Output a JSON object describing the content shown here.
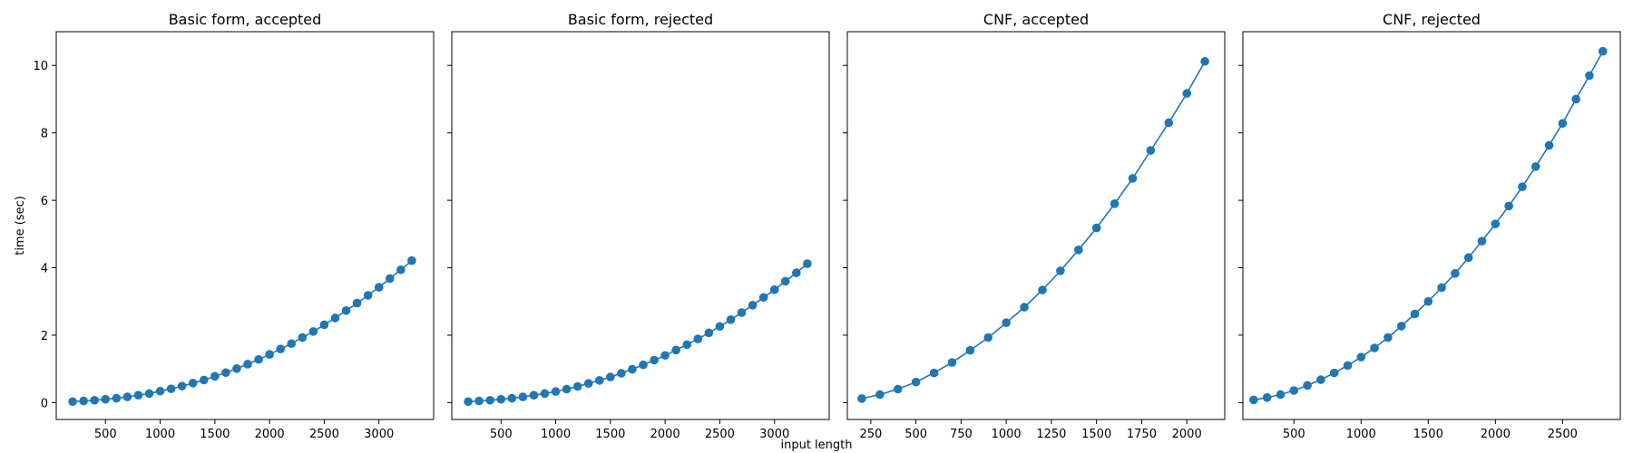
{
  "figure": {
    "xlabel": "input length",
    "ylabel": "time (sec)",
    "series_color": "#1f77b4"
  },
  "chart_data": [
    {
      "type": "line",
      "title": "Basic form, accepted",
      "xlim": [
        50,
        3500
      ],
      "ylim": [
        -0.5,
        11
      ],
      "xticks": [
        500,
        1000,
        1500,
        2000,
        2500,
        3000
      ],
      "yticks": [
        0,
        2,
        4,
        6,
        8,
        10
      ],
      "x": [
        200,
        300,
        400,
        500,
        600,
        700,
        800,
        900,
        1000,
        1100,
        1200,
        1300,
        1400,
        1500,
        1600,
        1700,
        1800,
        1900,
        2000,
        2100,
        2200,
        2300,
        2400,
        2500,
        2600,
        2700,
        2800,
        2900,
        3000,
        3100,
        3200,
        3300
      ],
      "y": [
        0.03,
        0.05,
        0.07,
        0.1,
        0.13,
        0.17,
        0.22,
        0.27,
        0.34,
        0.41,
        0.49,
        0.58,
        0.67,
        0.78,
        0.89,
        1.01,
        1.14,
        1.28,
        1.43,
        1.59,
        1.75,
        1.93,
        2.11,
        2.31,
        2.51,
        2.73,
        2.95,
        3.18,
        3.42,
        3.68,
        3.94,
        4.21
      ]
    },
    {
      "type": "line",
      "title": "Basic form, rejected",
      "xlim": [
        50,
        3500
      ],
      "ylim": [
        -0.5,
        11
      ],
      "xticks": [
        500,
        1000,
        1500,
        2000,
        2500,
        3000
      ],
      "yticks": [
        0,
        2,
        4,
        6,
        8,
        10
      ],
      "x": [
        200,
        300,
        400,
        500,
        600,
        700,
        800,
        900,
        1000,
        1100,
        1200,
        1300,
        1400,
        1500,
        1600,
        1700,
        1800,
        1900,
        2000,
        2100,
        2200,
        2300,
        2400,
        2500,
        2600,
        2700,
        2800,
        2900,
        3000,
        3100,
        3200,
        3300
      ],
      "y": [
        0.03,
        0.05,
        0.07,
        0.1,
        0.13,
        0.17,
        0.22,
        0.27,
        0.33,
        0.4,
        0.48,
        0.57,
        0.66,
        0.76,
        0.87,
        0.99,
        1.12,
        1.26,
        1.4,
        1.56,
        1.72,
        1.89,
        2.07,
        2.26,
        2.46,
        2.67,
        2.89,
        3.12,
        3.35,
        3.6,
        3.85,
        4.12
      ]
    },
    {
      "type": "line",
      "title": "CNF, accepted",
      "xlim": [
        120,
        2210
      ],
      "ylim": [
        -0.5,
        11
      ],
      "xticks": [
        250,
        500,
        750,
        1000,
        1250,
        1500,
        1750,
        2000
      ],
      "yticks": [
        0,
        2,
        4,
        6,
        8,
        10
      ],
      "x": [
        200,
        300,
        400,
        500,
        600,
        700,
        800,
        900,
        1000,
        1100,
        1200,
        1300,
        1400,
        1500,
        1600,
        1700,
        1800,
        1900,
        2000,
        2100
      ],
      "y": [
        0.12,
        0.24,
        0.4,
        0.61,
        0.88,
        1.19,
        1.55,
        1.93,
        2.37,
        2.83,
        3.34,
        3.91,
        4.53,
        5.18,
        5.9,
        6.65,
        7.48,
        8.3,
        9.17,
        10.12
      ]
    },
    {
      "type": "line",
      "title": "CNF, rejected",
      "xlim": [
        120,
        2930
      ],
      "ylim": [
        -0.5,
        11
      ],
      "xticks": [
        500,
        1000,
        1500,
        2000,
        2500
      ],
      "yticks": [
        0,
        2,
        4,
        6,
        8,
        10
      ],
      "x": [
        200,
        300,
        400,
        500,
        600,
        700,
        800,
        900,
        1000,
        1100,
        1200,
        1300,
        1400,
        1500,
        1600,
        1700,
        1800,
        1900,
        2000,
        2100,
        2200,
        2300,
        2400,
        2500,
        2600,
        2700,
        2800
      ],
      "y": [
        0.08,
        0.15,
        0.24,
        0.36,
        0.51,
        0.68,
        0.88,
        1.1,
        1.35,
        1.62,
        1.93,
        2.27,
        2.63,
        3.0,
        3.41,
        3.83,
        4.3,
        4.79,
        5.3,
        5.83,
        6.4,
        7.0,
        7.63,
        8.28,
        9.0,
        9.7,
        10.42
      ]
    }
  ]
}
